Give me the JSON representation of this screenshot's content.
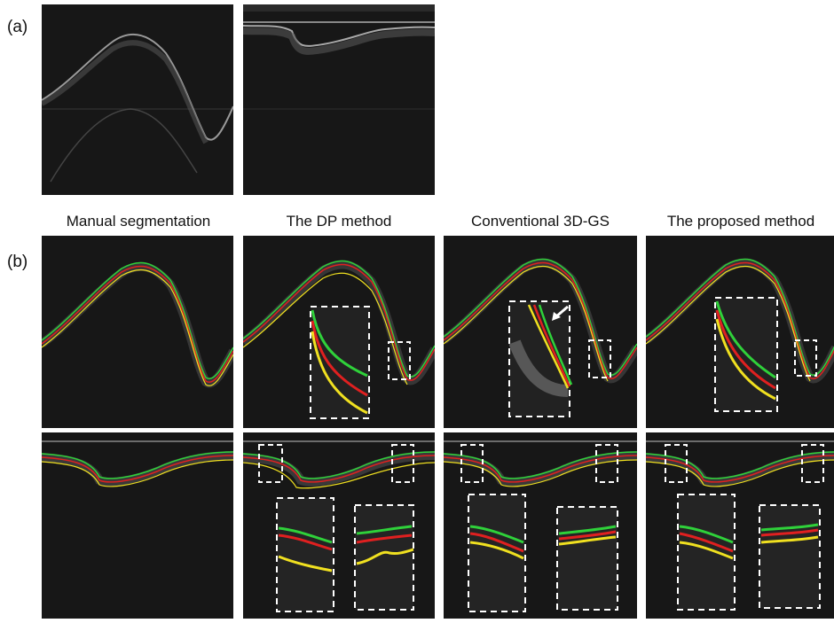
{
  "figure": {
    "row_a_label": "(a)",
    "row_b_label": "(b)",
    "column_titles": [
      "Manual segmentation",
      "The DP method",
      "Conventional 3D-GS",
      "The proposed method"
    ]
  },
  "colors": {
    "background": "#161616",
    "boundary_top": "#2fd13a",
    "boundary_middle": "#e02020",
    "boundary_bottom": "#f0e020",
    "inset_box": "#ffffff"
  },
  "annotations": {
    "arrow": "white arrow pointing to boundary error in Conventional 3D-GS inset",
    "arrow-icon": "arrow-icon"
  }
}
